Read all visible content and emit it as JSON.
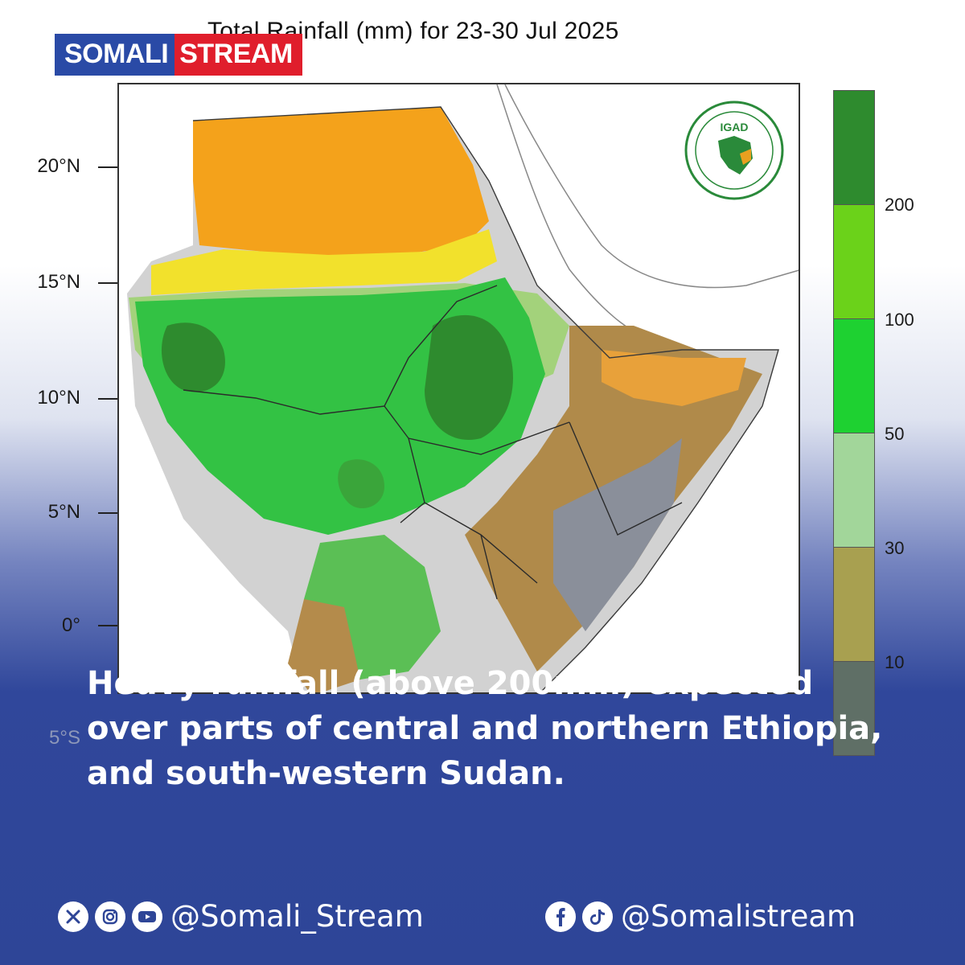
{
  "brand": {
    "logo_part1": "SOMALI",
    "logo_part2": "STREAM",
    "logo_color1": "#2a4aa6",
    "logo_color2": "#e01e2c"
  },
  "map": {
    "title": "Total Rainfall (mm) for 23-30 Jul 2025",
    "emblem_text": "IGAD",
    "lat_labels": [
      "20°N",
      "15°N",
      "10°N",
      "5°N",
      "0°",
      "5°S"
    ],
    "legend": {
      "colors": [
        "#2e8b2e",
        "#6bd21a",
        "#1ed131",
        "#a2d69a",
        "#a8a050",
        "#5f6f66"
      ],
      "labels": [
        "200",
        "100",
        "50",
        "30",
        "10"
      ]
    }
  },
  "headline": "Heavy rainfall (above 200mm) expected over parts of central and northern Ethiopia, and south-western Sudan.",
  "social": {
    "left_icons": [
      "x-icon",
      "instagram-icon",
      "youtube-icon"
    ],
    "left_handle": "@Somali_Stream",
    "right_icons": [
      "facebook-icon",
      "tiktok-icon"
    ],
    "right_handle": "@Somalistream"
  }
}
